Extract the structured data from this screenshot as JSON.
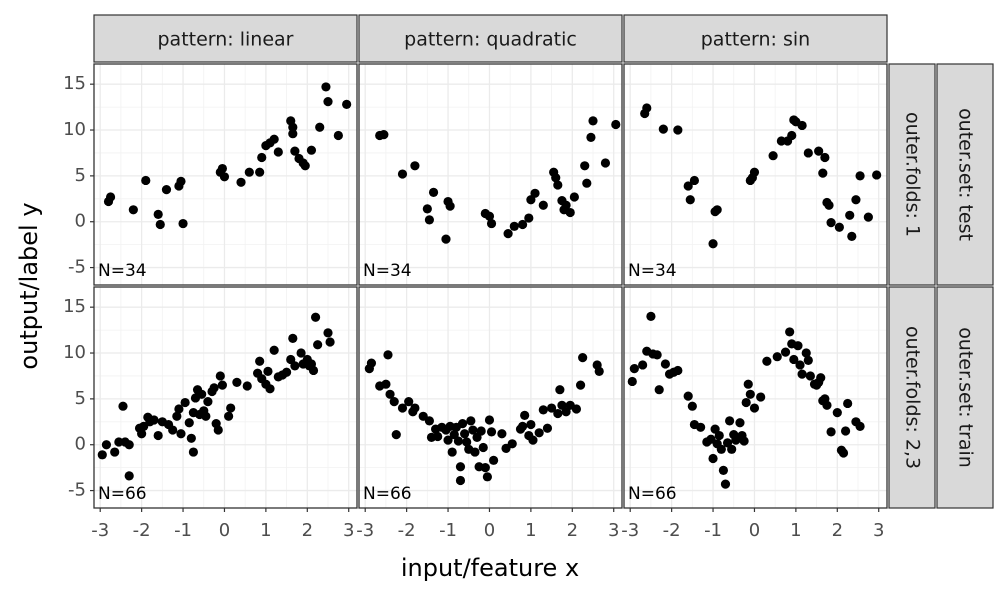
{
  "chart_data": {
    "type": "scatter",
    "x_label": "input/feature x",
    "y_label": "output/label y",
    "xlim": [
      -3.15,
      3.2
    ],
    "ylim": [
      -6.9,
      17.2
    ],
    "xticks": [
      -3,
      -2,
      -1,
      0,
      1,
      2,
      3
    ],
    "yticks": [
      -5,
      0,
      5,
      10,
      15
    ],
    "grid": true,
    "color": "#000000",
    "col_facets": [
      "pattern: linear",
      "pattern: quadratic",
      "pattern: sin"
    ],
    "rows": [
      {
        "strips": [
          "outer.folds: 1",
          "outer.set: test"
        ],
        "panels": [
          {
            "annotation": "N=34",
            "x": [
              -2.8,
              -2.75,
              -2.2,
              -1.9,
              -1.6,
              -1.55,
              -1.4,
              -1.1,
              -1.05,
              -1.0,
              -0.1,
              -0.05,
              0.0,
              0.4,
              0.6,
              0.85,
              0.9,
              1.0,
              1.1,
              1.2,
              1.3,
              1.6,
              1.65,
              1.65,
              1.7,
              1.8,
              1.9,
              1.95,
              2.1,
              2.3,
              2.45,
              2.5,
              2.75,
              2.95
            ],
            "y": [
              2.2,
              2.7,
              1.3,
              4.5,
              0.8,
              -0.3,
              3.5,
              3.9,
              4.4,
              -0.2,
              5.4,
              5.8,
              4.9,
              4.3,
              5.4,
              5.4,
              7.0,
              8.3,
              8.6,
              9.0,
              7.6,
              11.0,
              10.3,
              9.6,
              7.7,
              6.9,
              6.4,
              6.1,
              7.8,
              10.3,
              14.7,
              13.1,
              9.4,
              12.8
            ]
          },
          {
            "annotation": "N=34",
            "x": [
              -2.65,
              -2.55,
              -2.1,
              -1.8,
              -1.5,
              -1.45,
              -1.35,
              -1.0,
              -0.95,
              -1.05,
              -0.1,
              0.0,
              0.05,
              0.45,
              0.6,
              0.8,
              0.95,
              1.0,
              1.1,
              1.3,
              1.55,
              1.6,
              1.65,
              1.75,
              1.8,
              1.85,
              1.95,
              2.05,
              2.3,
              2.35,
              2.5,
              2.45,
              2.8,
              3.05
            ],
            "y": [
              9.4,
              9.5,
              5.2,
              6.1,
              1.4,
              0.2,
              3.2,
              2.2,
              1.7,
              -1.9,
              0.9,
              0.6,
              -0.2,
              -1.3,
              -0.5,
              -0.3,
              0.4,
              2.4,
              3.1,
              1.8,
              5.4,
              4.8,
              4.0,
              2.3,
              1.3,
              1.8,
              1.0,
              2.7,
              6.1,
              4.2,
              11.0,
              9.2,
              6.4,
              10.6
            ]
          },
          {
            "annotation": "N=34",
            "x": [
              -2.65,
              -2.6,
              -2.2,
              -1.85,
              -1.6,
              -1.55,
              -1.45,
              -1.0,
              -0.95,
              -0.9,
              -0.1,
              -0.05,
              0.0,
              0.45,
              0.65,
              0.8,
              0.9,
              0.95,
              1.0,
              1.15,
              1.3,
              1.55,
              1.65,
              1.7,
              1.75,
              1.8,
              1.85,
              2.05,
              2.3,
              2.35,
              2.45,
              2.55,
              2.75,
              2.95
            ],
            "y": [
              11.8,
              12.4,
              10.1,
              10.0,
              3.9,
              2.4,
              4.5,
              -2.4,
              1.1,
              1.3,
              4.5,
              4.8,
              5.4,
              7.2,
              8.8,
              8.8,
              9.4,
              11.1,
              10.9,
              10.5,
              7.5,
              7.7,
              5.3,
              7.0,
              2.1,
              1.8,
              -0.1,
              -0.6,
              0.7,
              -1.6,
              2.4,
              5.0,
              0.5,
              5.1
            ]
          }
        ]
      },
      {
        "strips": [
          "outer.folds: 2,3",
          "outer.set: train"
        ],
        "panels": [
          {
            "annotation": "N=66",
            "x": [
              -2.95,
              -2.85,
              -2.65,
              -2.55,
              -2.45,
              -2.4,
              -2.3,
              -2.3,
              -2.05,
              -2.0,
              -1.95,
              -1.85,
              -1.8,
              -1.7,
              -1.6,
              -1.5,
              -1.35,
              -1.25,
              -1.15,
              -1.1,
              -1.05,
              -0.95,
              -0.85,
              -0.8,
              -0.75,
              -0.75,
              -0.7,
              -0.65,
              -0.6,
              -0.55,
              -0.5,
              -0.45,
              -0.4,
              -0.3,
              -0.25,
              -0.2,
              -0.15,
              -0.1,
              -0.05,
              0.1,
              0.15,
              0.3,
              0.55,
              0.8,
              0.85,
              0.9,
              1.0,
              1.05,
              1.1,
              1.2,
              1.3,
              1.4,
              1.5,
              1.6,
              1.65,
              1.7,
              1.85,
              1.9,
              2.0,
              2.05,
              2.15,
              2.2,
              2.25,
              2.5,
              2.55,
              2.1
            ],
            "y": [
              -1.1,
              0.0,
              -0.8,
              0.3,
              4.2,
              0.3,
              0.0,
              -3.4,
              1.8,
              1.2,
              2.0,
              3.0,
              2.5,
              2.7,
              1.0,
              2.5,
              2.2,
              1.6,
              3.1,
              3.9,
              1.2,
              4.6,
              2.4,
              0.7,
              -0.8,
              3.5,
              5.1,
              6.0,
              3.3,
              5.5,
              3.7,
              3.1,
              4.7,
              5.8,
              6.2,
              2.3,
              1.6,
              7.5,
              6.5,
              3.1,
              4.0,
              6.8,
              6.4,
              7.8,
              9.1,
              7.2,
              6.6,
              8.0,
              6.1,
              10.3,
              7.4,
              7.6,
              7.9,
              9.3,
              11.6,
              8.6,
              10.0,
              8.8,
              9.3,
              8.6,
              8.1,
              13.9,
              10.9,
              12.2,
              11.2,
              8.8
            ]
          },
          {
            "annotation": "N=66",
            "x": [
              -2.9,
              -2.85,
              -2.65,
              -2.5,
              -2.45,
              -2.4,
              -2.3,
              -2.25,
              -2.1,
              -1.95,
              -1.85,
              -1.8,
              -1.6,
              -1.45,
              -1.4,
              -1.3,
              -1.25,
              -1.15,
              -1.05,
              -1.0,
              -0.95,
              -0.9,
              -0.85,
              -0.8,
              -0.75,
              -0.7,
              -0.7,
              -0.65,
              -0.6,
              -0.55,
              -0.5,
              -0.45,
              -0.4,
              -0.35,
              -0.3,
              -0.25,
              -0.2,
              -0.15,
              -0.1,
              -0.05,
              0.0,
              0.05,
              0.1,
              0.3,
              0.4,
              0.55,
              0.75,
              0.8,
              0.85,
              0.95,
              1.0,
              1.05,
              1.2,
              1.3,
              1.4,
              1.5,
              1.65,
              1.7,
              1.75,
              1.85,
              1.95,
              2.1,
              2.2,
              2.25,
              2.6,
              2.65
            ],
            "y": [
              8.3,
              8.9,
              6.4,
              6.6,
              9.8,
              5.5,
              4.7,
              1.1,
              4.0,
              4.7,
              3.6,
              4.0,
              3.1,
              2.6,
              0.8,
              1.7,
              0.9,
              1.9,
              1.6,
              0.5,
              2.0,
              -0.8,
              1.1,
              1.9,
              0.4,
              -2.4,
              -3.9,
              2.3,
              1.2,
              0.3,
              -0.5,
              2.6,
              1.6,
              -0.8,
              0.8,
              -2.4,
              1.5,
              -0.3,
              -2.5,
              -3.5,
              2.7,
              1.4,
              -1.7,
              1.2,
              -0.4,
              0.1,
              1.7,
              2.0,
              3.2,
              1.0,
              2.2,
              0.5,
              1.3,
              3.8,
              1.8,
              4.0,
              3.4,
              6.0,
              4.3,
              3.6,
              4.3,
              3.9,
              6.5,
              9.5,
              8.7,
              8.0
            ]
          },
          {
            "annotation": "N=66",
            "x": [
              -2.95,
              -2.9,
              -2.7,
              -2.6,
              -2.5,
              -2.45,
              -2.35,
              -2.3,
              -2.15,
              -2.05,
              -1.95,
              -1.85,
              -1.6,
              -1.5,
              -1.45,
              -1.3,
              -1.15,
              -1.05,
              -1.0,
              -0.95,
              -0.9,
              -0.85,
              -0.8,
              -0.75,
              -0.7,
              -0.65,
              -0.6,
              -0.55,
              -0.5,
              -0.45,
              -0.4,
              -0.35,
              -0.3,
              -0.25,
              -0.2,
              -0.15,
              -0.1,
              0.0,
              0.15,
              0.3,
              0.55,
              0.75,
              0.85,
              0.9,
              0.95,
              1.05,
              1.1,
              1.15,
              1.25,
              1.3,
              1.35,
              1.45,
              1.5,
              1.6,
              1.7,
              1.75,
              1.85,
              2.0,
              2.1,
              2.15,
              2.2,
              2.25,
              2.45,
              2.55,
              1.55,
              1.65
            ],
            "y": [
              6.9,
              8.3,
              8.7,
              10.2,
              14.0,
              9.9,
              9.8,
              6.0,
              8.8,
              7.7,
              7.9,
              8.1,
              5.3,
              4.2,
              2.2,
              1.9,
              0.3,
              0.6,
              -1.5,
              1.7,
              0.1,
              1.0,
              -0.5,
              -2.8,
              -4.3,
              0.2,
              2.6,
              -0.5,
              1.1,
              0.5,
              0.7,
              2.4,
              1.0,
              0.4,
              4.6,
              6.6,
              5.5,
              4.0,
              5.2,
              9.1,
              9.6,
              10.1,
              12.3,
              11.0,
              9.3,
              10.8,
              8.7,
              7.7,
              10.0,
              9.2,
              7.5,
              6.6,
              6.5,
              7.3,
              5.0,
              4.3,
              1.4,
              3.5,
              -0.6,
              -0.9,
              1.5,
              4.5,
              2.5,
              2.0,
              6.8,
              4.8
            ]
          }
        ]
      }
    ]
  }
}
